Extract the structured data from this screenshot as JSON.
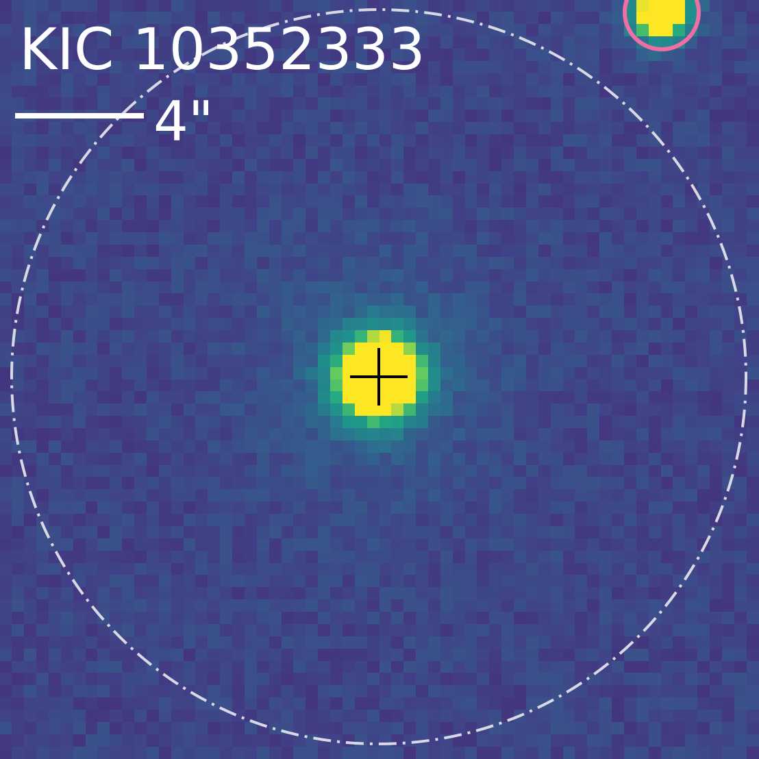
{
  "target": {
    "name": "KIC 10352333"
  },
  "scale_bar": {
    "label": "4\""
  },
  "colors": {
    "background": "#3b5290",
    "target_core": "#fde725",
    "aperture_ring": "#d9d9e6",
    "companion_marker": "#ef6fa5",
    "crosshair": "#000000",
    "text": "#ffffff"
  },
  "markers": {
    "aperture_circle": "dash-dot",
    "target_crosshair": "plus",
    "companion_circle": "solid"
  }
}
